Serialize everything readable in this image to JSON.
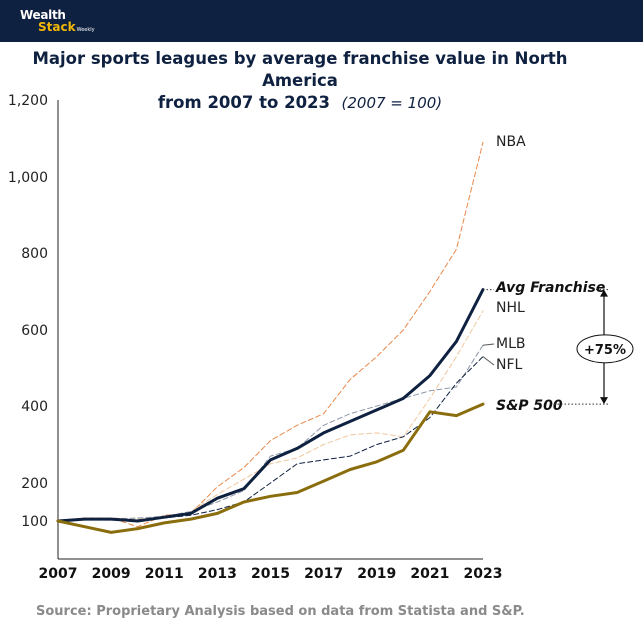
{
  "header": {
    "logo_line1": "Wealth",
    "logo_line2": "Stack",
    "logo_suffix": "Weekly",
    "bar_color": "#0f2140"
  },
  "chart_data": {
    "type": "line",
    "title_line1": "Major sports leagues by average franchise value in North America",
    "title_line2": "from 2007 to 2023",
    "subtitle": "(2007 = 100)",
    "x": [
      2007,
      2008,
      2009,
      2010,
      2011,
      2012,
      2013,
      2014,
      2015,
      2016,
      2017,
      2018,
      2019,
      2020,
      2021,
      2022,
      2023
    ],
    "x_tick_labels": [
      "2007",
      "2009",
      "2011",
      "2013",
      "2015",
      "2017",
      "2019",
      "2021",
      "2023"
    ],
    "x_tick_values": [
      2007,
      2009,
      2011,
      2013,
      2015,
      2017,
      2019,
      2021,
      2023
    ],
    "xlim": [
      2007,
      2023
    ],
    "y_tick_labels": [
      "100",
      "200",
      "400",
      "600",
      "800",
      "1,000",
      "1,200"
    ],
    "y_tick_values": [
      100,
      200,
      400,
      600,
      800,
      1000,
      1200
    ],
    "ylim": [
      0,
      1200
    ],
    "grid": false,
    "series": [
      {
        "name": "NBA",
        "label": "NBA",
        "style": "dashed",
        "color": "#e8884a",
        "width": 1,
        "values": [
          100,
          108,
          108,
          85,
          115,
          120,
          190,
          240,
          310,
          350,
          380,
          470,
          530,
          600,
          700,
          810,
          1090
        ]
      },
      {
        "name": "NHL",
        "label": "NHL",
        "style": "dashed",
        "color": "#f0c8a0",
        "width": 1,
        "values": [
          100,
          105,
          108,
          106,
          112,
          125,
          170,
          210,
          250,
          265,
          300,
          325,
          330,
          320,
          420,
          530,
          650
        ]
      },
      {
        "name": "MLB",
        "label": "MLB",
        "style": "dashed",
        "color": "#8e98a8",
        "width": 1,
        "values": [
          100,
          105,
          105,
          108,
          112,
          125,
          150,
          180,
          270,
          290,
          350,
          380,
          400,
          420,
          440,
          450,
          560
        ]
      },
      {
        "name": "NFL",
        "label": "NFL",
        "style": "dashed",
        "color": "#0f2140",
        "width": 1,
        "values": [
          100,
          103,
          105,
          103,
          108,
          115,
          130,
          150,
          200,
          250,
          260,
          270,
          300,
          320,
          370,
          460,
          530
        ]
      },
      {
        "name": "Avg Franchise",
        "label": "Avg Franchise",
        "style": "solid",
        "color": "#0f2140",
        "width": 3,
        "values": [
          100,
          105,
          105,
          100,
          110,
          120,
          160,
          185,
          260,
          290,
          330,
          360,
          390,
          420,
          480,
          570,
          705
        ]
      },
      {
        "name": "S&P 500",
        "label": "S&P 500",
        "style": "solid",
        "color": "#8a6d0c",
        "width": 3,
        "values": [
          100,
          85,
          70,
          80,
          95,
          105,
          120,
          150,
          165,
          175,
          205,
          235,
          255,
          285,
          385,
          375,
          405
        ]
      }
    ],
    "annotation": "+75%",
    "annotation_top_value": 705,
    "annotation_bottom_value": 405
  },
  "footer": {
    "source": "Source: Proprietary Analysis based on data from Statista and S&P."
  }
}
